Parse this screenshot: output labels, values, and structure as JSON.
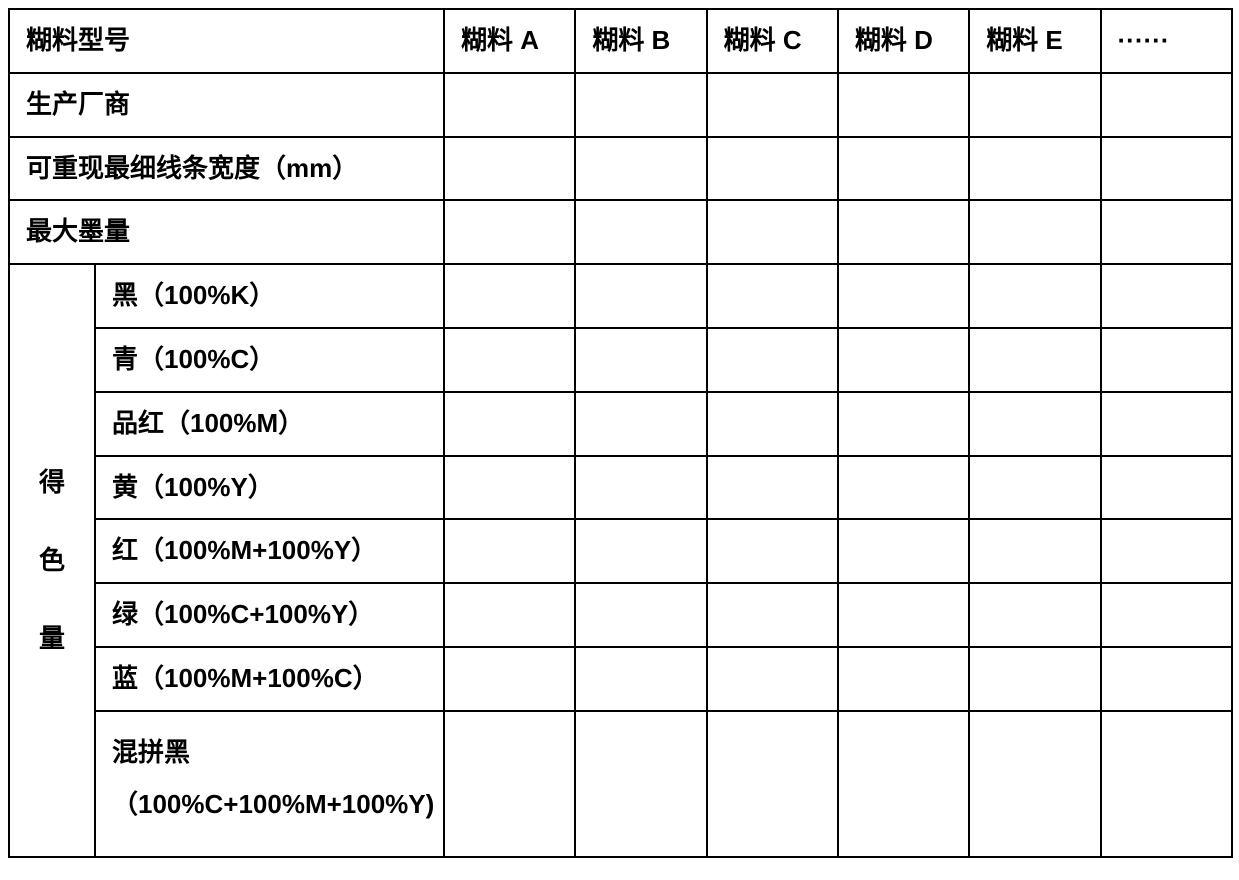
{
  "table": {
    "border_color": "#000000",
    "background_color": "#ffffff",
    "text_color": "#000000",
    "font_weight": "700",
    "font_size_pt": 20,
    "header_row": {
      "label": "糊料型号",
      "columns": [
        "糊料 A",
        "糊料 B",
        "糊料 C",
        "糊料 D",
        "糊料 E",
        "······"
      ]
    },
    "simple_rows": [
      {
        "label": "生产厂商",
        "values": [
          "",
          "",
          "",
          "",
          "",
          ""
        ]
      },
      {
        "label": "可重现最细线条宽度（mm）",
        "values": [
          "",
          "",
          "",
          "",
          "",
          ""
        ]
      },
      {
        "label": "最大墨量",
        "values": [
          "",
          "",
          "",
          "",
          "",
          ""
        ]
      }
    ],
    "color_section": {
      "spine_label_chars": [
        "得",
        "色",
        "量"
      ],
      "rows": [
        {
          "label": "黑（100%K）",
          "values": [
            "",
            "",
            "",
            "",
            "",
            ""
          ]
        },
        {
          "label": "青（100%C）",
          "values": [
            "",
            "",
            "",
            "",
            "",
            ""
          ]
        },
        {
          "label": "品红（100%M）",
          "values": [
            "",
            "",
            "",
            "",
            "",
            ""
          ]
        },
        {
          "label": "黄（100%Y）",
          "values": [
            "",
            "",
            "",
            "",
            "",
            ""
          ]
        },
        {
          "label": "红（100%M+100%Y）",
          "values": [
            "",
            "",
            "",
            "",
            "",
            ""
          ]
        },
        {
          "label": "绿（100%C+100%Y）",
          "values": [
            "",
            "",
            "",
            "",
            "",
            ""
          ]
        },
        {
          "label": "蓝（100%M+100%C）",
          "values": [
            "",
            "",
            "",
            "",
            "",
            ""
          ]
        },
        {
          "label": "混拼黑\n（100%C+100%M+100%Y)",
          "values": [
            "",
            "",
            "",
            "",
            "",
            ""
          ]
        }
      ]
    }
  }
}
